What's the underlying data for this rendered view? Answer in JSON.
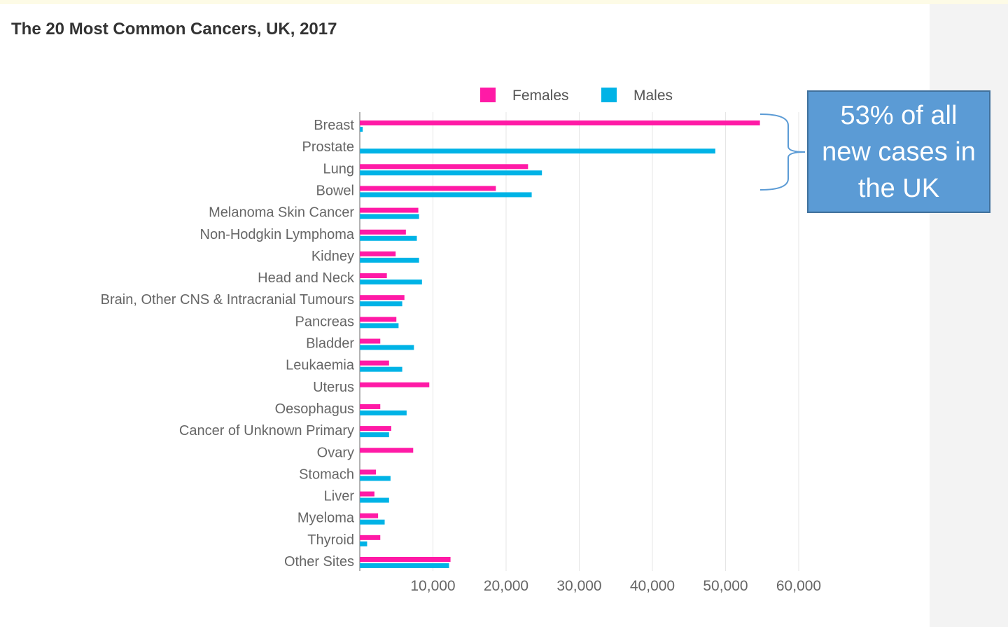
{
  "chart_data": {
    "type": "bar",
    "orientation": "horizontal",
    "title": "The 20 Most Common Cancers, UK, 2017",
    "xlabel": "",
    "ylabel": "",
    "categories": [
      "Breast",
      "Prostate",
      "Lung",
      "Bowel",
      "Melanoma Skin Cancer",
      "Non-Hodgkin Lymphoma",
      "Kidney",
      "Head and Neck",
      "Brain, Other CNS & Intracranial Tumours",
      "Pancreas",
      "Bladder",
      "Leukaemia",
      "Uterus",
      "Oesophagus",
      "Cancer of Unknown Primary",
      "Ovary",
      "Stomach",
      "Liver",
      "Myeloma",
      "Thyroid",
      "Other Sites"
    ],
    "series": [
      {
        "name": "Females",
        "color": "#ff1aa6",
        "values": [
          54700,
          0,
          23000,
          18600,
          8000,
          6300,
          4900,
          3700,
          6100,
          5000,
          2800,
          4000,
          9500,
          2800,
          4300,
          7300,
          2200,
          2000,
          2500,
          2800,
          12400
        ]
      },
      {
        "name": "Males",
        "color": "#00b3e6",
        "values": [
          400,
          48600,
          24900,
          23500,
          8100,
          7800,
          8100,
          8500,
          5800,
          5300,
          7400,
          5800,
          0,
          6400,
          4000,
          0,
          4200,
          4000,
          3400,
          1000,
          12200
        ]
      }
    ],
    "xlim": [
      0,
      60000
    ],
    "xticks": [
      "10,000",
      "20,000",
      "30,000",
      "40,000",
      "50,000",
      "60,000"
    ],
    "xtick_values": [
      10000,
      20000,
      30000,
      40000,
      50000,
      60000
    ],
    "grid": true,
    "legend": "top-center"
  },
  "annotation": {
    "text": "53%  of all\nnew cases in\nthe UK",
    "bracket_categories": [
      "Breast",
      "Prostate",
      "Lung",
      "Bowel"
    ]
  }
}
